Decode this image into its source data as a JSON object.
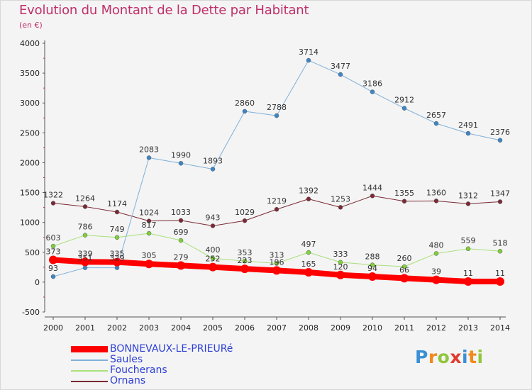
{
  "title": "Evolution du Montant de la Dette par Habitant",
  "subtitle": "(en €)",
  "chart_data": {
    "type": "line",
    "title": "Evolution du Montant de la Dette par Habitant",
    "subtitle": "(en €)",
    "ylim": [
      -500,
      4000
    ],
    "yticks": [
      -500,
      0,
      500,
      1000,
      1500,
      2000,
      2500,
      3000,
      3500,
      4000
    ],
    "x": [
      "2000",
      "2001",
      "2002",
      "2003",
      "2004",
      "2005",
      "2006",
      "2007",
      "2008",
      "2009",
      "2010",
      "2011",
      "2012",
      "2013",
      "2014"
    ],
    "grid": false,
    "legend_position": "bottom-left",
    "series": [
      {
        "name": "BONNEVAUX-LE-PRIEURé",
        "color": "#ff0000",
        "marker_color": "#ff0000",
        "width": 8,
        "values": [
          373,
          339,
          335,
          305,
          279,
          252,
          223,
          196,
          165,
          120,
          94,
          66,
          39,
          11,
          11
        ]
      },
      {
        "name": "Saules",
        "color": "#7fb0d8",
        "marker_color": "#3d86c6",
        "width": 1,
        "values": [
          93,
          241,
          241,
          2083,
          1990,
          1893,
          2860,
          2788,
          3714,
          3477,
          3186,
          2912,
          2657,
          2491,
          2376
        ]
      },
      {
        "name": "Foucherans",
        "color": "#a8e07a",
        "marker_color": "#7fd03a",
        "width": 1,
        "values": [
          603,
          786,
          749,
          817,
          699,
          400,
          353,
          313,
          497,
          333,
          288,
          260,
          480,
          559,
          518
        ]
      },
      {
        "name": "Ornans",
        "color": "#7a2a35",
        "marker_color": "#7a2a35",
        "width": 1,
        "values": [
          1322,
          1264,
          1174,
          1024,
          1033,
          943,
          1029,
          1219,
          1392,
          1253,
          1444,
          1355,
          1360,
          1312,
          1347
        ]
      }
    ],
    "labels": [
      {
        "series": 0,
        "text": [
          "373",
          "339",
          "335",
          "305",
          "279",
          "252",
          "223",
          "196",
          "165",
          "120",
          "94",
          "66",
          "39",
          "11",
          "11"
        ]
      },
      {
        "series": 1,
        "text": [
          "93",
          "",
          "",
          "2083",
          "1990",
          "1893",
          "2860",
          "2788",
          "3714",
          "3477",
          "3186",
          "2912",
          "2657",
          "2491",
          "2376"
        ]
      },
      {
        "series": 2,
        "text": [
          "603",
          "786",
          "749",
          "817",
          "699",
          "400",
          "353",
          "313",
          "497",
          "333",
          "288",
          "260",
          "480",
          "559",
          "518"
        ]
      },
      {
        "series": 3,
        "text": [
          "1322",
          "1264",
          "1174",
          "1024",
          "1033",
          "943",
          "1029",
          "1219",
          "1392",
          "1253",
          "1444",
          "1355",
          "1360",
          "1312",
          "1347"
        ]
      }
    ],
    "extra_labels": [
      {
        "x": "2001",
        "text": "351"
      },
      {
        "x": "2002",
        "text": "329"
      }
    ]
  },
  "logo": {
    "text": "Proxiti",
    "letters": [
      {
        "ch": "P",
        "color": "#3a8fd6"
      },
      {
        "ch": "r",
        "color": "#f08a1c"
      },
      {
        "ch": "o",
        "color": "#8fc63d"
      },
      {
        "ch": "x",
        "color": "#e23b2e"
      },
      {
        "ch": "i",
        "color": "#3a8fd6"
      },
      {
        "ch": "t",
        "color": "#f08a1c"
      },
      {
        "ch": "i",
        "color": "#8fc63d"
      }
    ]
  }
}
